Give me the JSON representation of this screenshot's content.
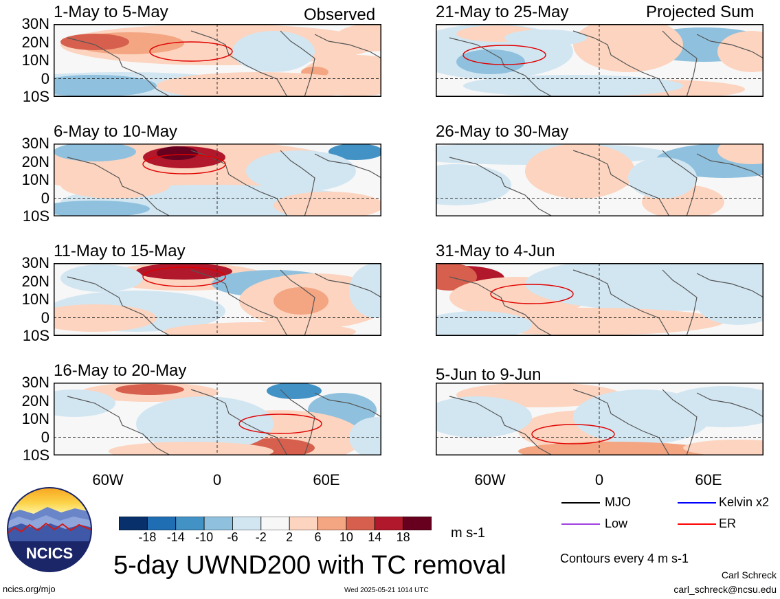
{
  "header": {
    "observed_label": "Observed",
    "projected_label": "Projected Sum"
  },
  "panels": [
    {
      "title": "1-May to 5-May"
    },
    {
      "title": "6-May to 10-May"
    },
    {
      "title": "11-May to 15-May"
    },
    {
      "title": "16-May to 20-May"
    },
    {
      "title": "21-May to 25-May"
    },
    {
      "title": "26-May to 30-May"
    },
    {
      "title": "31-May to 4-Jun"
    },
    {
      "title": "5-Jun to 9-Jun"
    }
  ],
  "lat_labels": [
    "30N",
    "20N",
    "10N",
    "0",
    "10S"
  ],
  "lon_labels": [
    "60W",
    "0",
    "60E"
  ],
  "colorbar": {
    "tick_labels": [
      "-18",
      "-14",
      "-10",
      "-6",
      "-2",
      "2",
      "6",
      "10",
      "14",
      "18"
    ],
    "colors": [
      "#08306b",
      "#1f6db3",
      "#4292c6",
      "#8fc1de",
      "#d2e6f2",
      "#f7f7f7",
      "#fcd4bf",
      "#f4a582",
      "#d6604d",
      "#b2182b",
      "#67001f"
    ],
    "units": "m s-1"
  },
  "legend": {
    "items": [
      {
        "label": "MJO",
        "color": "#000000"
      },
      {
        "label": "Kelvin x2",
        "color": "#0000ff"
      },
      {
        "label": "Low",
        "color": "#a040e0"
      },
      {
        "label": "ER",
        "color": "#ff0000"
      }
    ],
    "contour_note": "Contours every 4 m s-1"
  },
  "title": "5-day UWND200 with TC removal",
  "logo_text": "NCICS",
  "footer": {
    "url": "ncics.org/mjo",
    "timestamp": "Wed 2025-05-21 1014 UTC",
    "author": "Carl Schreck",
    "email": "carl_schreck@ncsu.edu"
  }
}
